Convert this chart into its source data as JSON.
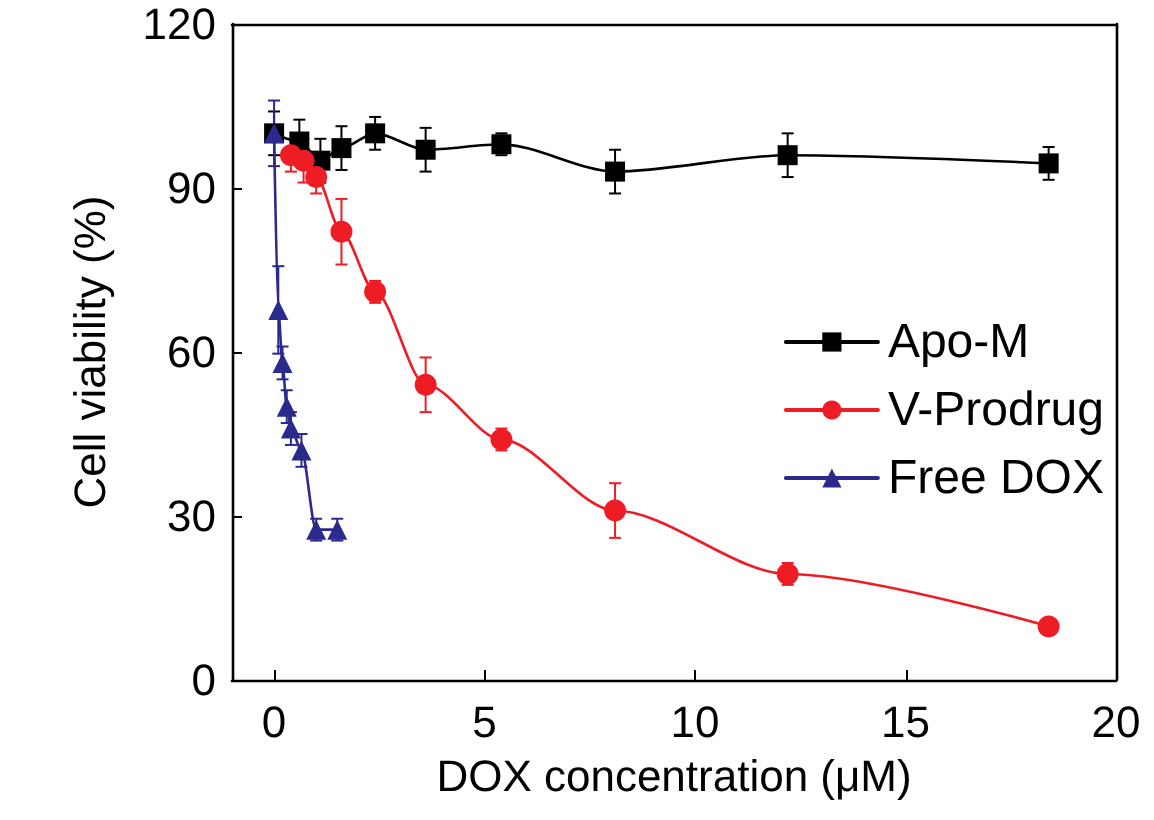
{
  "chart_data": {
    "type": "line",
    "xlabel": "DOX concentration (μM)",
    "ylabel": "Cell viability (%)",
    "xlim": [
      -1,
      20
    ],
    "xticks": [
      0,
      5,
      10,
      15,
      20
    ],
    "ylim": [
      0,
      120
    ],
    "yticks": [
      0,
      30,
      60,
      90,
      120
    ],
    "grid": false,
    "legend": "right",
    "line_style": "solid",
    "series": [
      {
        "name": "Apo-M",
        "color": "#000000",
        "marker": "square",
        "x": [
          0,
          0.6,
          1.1,
          1.6,
          2.4,
          3.6,
          5.4,
          8.1,
          12.2,
          18.4
        ],
        "values": [
          100,
          98.5,
          95,
          97.3,
          100,
          97,
          98,
          93,
          96,
          94.5
        ],
        "errors": [
          4,
          4,
          4,
          4,
          3,
          4,
          2,
          4,
          4,
          3
        ]
      },
      {
        "name": "V-Prodrug",
        "color": "#ee1c25",
        "marker": "circle",
        "x": [
          0.4,
          0.7,
          1.0,
          1.6,
          2.4,
          3.6,
          5.4,
          8.1,
          12.2,
          18.4
        ],
        "values": [
          96,
          95,
          92,
          82,
          71,
          54,
          44,
          31,
          19.4,
          9.8
        ],
        "errors": [
          3,
          4,
          3,
          6,
          2,
          5,
          2,
          5,
          2,
          1
        ]
      },
      {
        "name": "Free DOX",
        "color": "#2a2a8c",
        "marker": "triangle",
        "x": [
          0,
          0.1,
          0.2,
          0.3,
          0.4,
          0.65,
          1.0,
          1.5
        ],
        "values": [
          100,
          67.7,
          58,
          50,
          46,
          42,
          27.5,
          27.5
        ],
        "errors": [
          6,
          8,
          3,
          3,
          3,
          3,
          2,
          2
        ]
      }
    ]
  }
}
